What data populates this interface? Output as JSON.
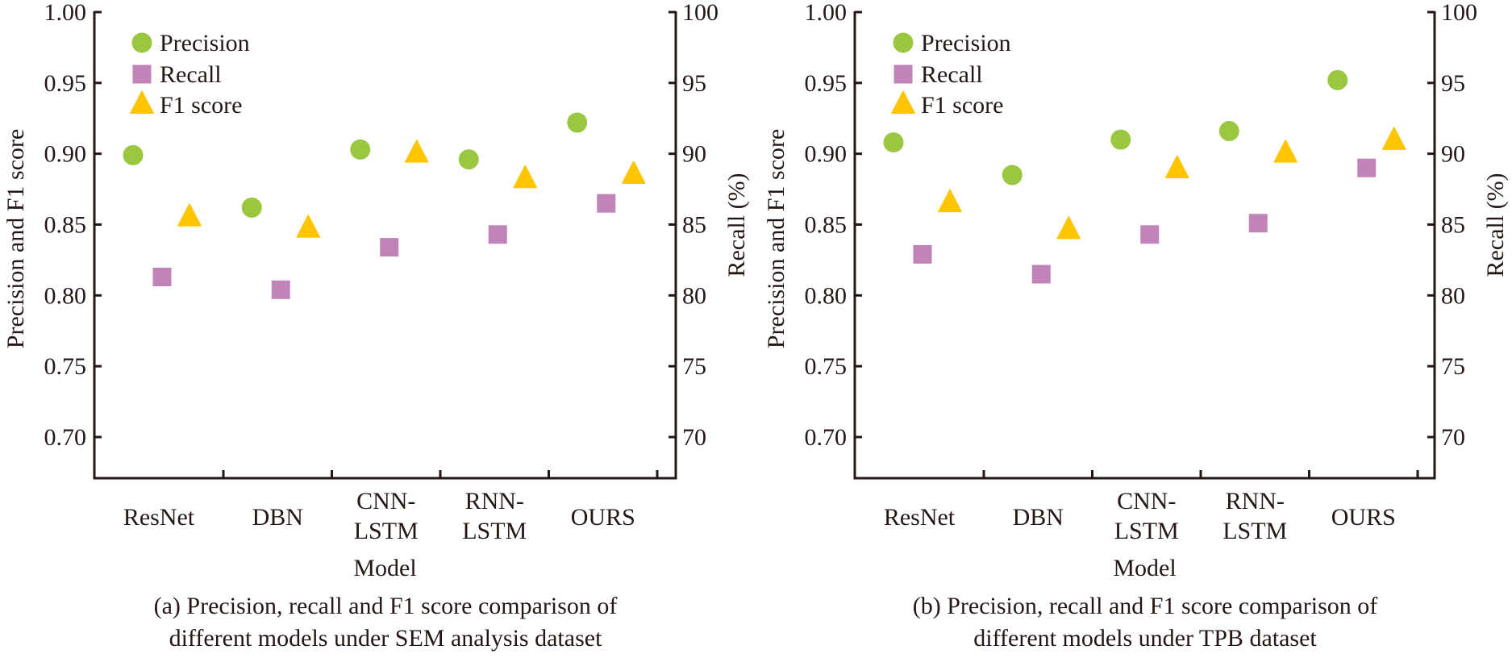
{
  "colors": {
    "precision": "#9AC740",
    "recall": "#C084B8",
    "f1": "#FFC500",
    "text": "#231815"
  },
  "chart_data": [
    {
      "type": "scatter",
      "caption_lines": [
        "(a) Precision, recall and F1 score comparison of",
        "different models under SEM analysis dataset"
      ],
      "xlabel": "Model",
      "ylabel": "Precision and F1 score",
      "y2label": "Recall (%)",
      "categories": [
        [
          "ResNet"
        ],
        [
          "DBN"
        ],
        [
          "CNN-",
          "LSTM"
        ],
        [
          "RNN-",
          "LSTM"
        ],
        [
          "OURS"
        ]
      ],
      "ylim": [
        0.67,
        1.0
      ],
      "yticks": [
        "1.00",
        "0.95",
        "0.90",
        "0.85",
        "0.80",
        "0.75",
        "0.70"
      ],
      "y2lim": [
        67,
        100
      ],
      "y2ticks": [
        "100",
        "95",
        "90",
        "85",
        "80",
        "75",
        "70"
      ],
      "legend": {
        "position": "top-left",
        "entries": [
          "Precision",
          "Recall",
          "F1 score"
        ]
      },
      "grid": false,
      "series": [
        {
          "name": "Precision",
          "axis": "left",
          "marker": "circle",
          "values": [
            0.899,
            0.862,
            0.903,
            0.896,
            0.922
          ]
        },
        {
          "name": "Recall",
          "axis": "right",
          "marker": "square",
          "values": [
            81.3,
            80.4,
            83.4,
            84.3,
            86.5
          ]
        },
        {
          "name": "F1 score",
          "axis": "left",
          "marker": "triangle",
          "values": [
            0.855,
            0.847,
            0.9,
            0.882,
            0.885
          ]
        }
      ]
    },
    {
      "type": "scatter",
      "caption_lines": [
        "(b) Precision, recall and F1 score comparison of",
        "different models under TPB dataset"
      ],
      "xlabel": "Model",
      "ylabel": "Precision and F1 score",
      "y2label": "Recall (%)",
      "categories": [
        [
          "ResNet"
        ],
        [
          "DBN"
        ],
        [
          "CNN-",
          "LSTM"
        ],
        [
          "RNN-",
          "LSTM"
        ],
        [
          "OURS"
        ]
      ],
      "ylim": [
        0.67,
        1.0
      ],
      "yticks": [
        "1.00",
        "0.95",
        "0.90",
        "0.85",
        "0.80",
        "0.75",
        "0.70"
      ],
      "y2lim": [
        67,
        100
      ],
      "y2ticks": [
        "100",
        "95",
        "90",
        "85",
        "80",
        "75",
        "70"
      ],
      "legend": {
        "position": "top-left",
        "entries": [
          "Precision",
          "Recall",
          "F1 score"
        ]
      },
      "grid": false,
      "series": [
        {
          "name": "Precision",
          "axis": "left",
          "marker": "circle",
          "values": [
            0.908,
            0.885,
            0.91,
            0.916,
            0.952
          ]
        },
        {
          "name": "Recall",
          "axis": "right",
          "marker": "square",
          "values": [
            82.9,
            81.5,
            84.3,
            85.1,
            89.0
          ]
        },
        {
          "name": "F1 score",
          "axis": "left",
          "marker": "triangle",
          "values": [
            0.865,
            0.846,
            0.889,
            0.9,
            0.909
          ]
        }
      ]
    }
  ]
}
